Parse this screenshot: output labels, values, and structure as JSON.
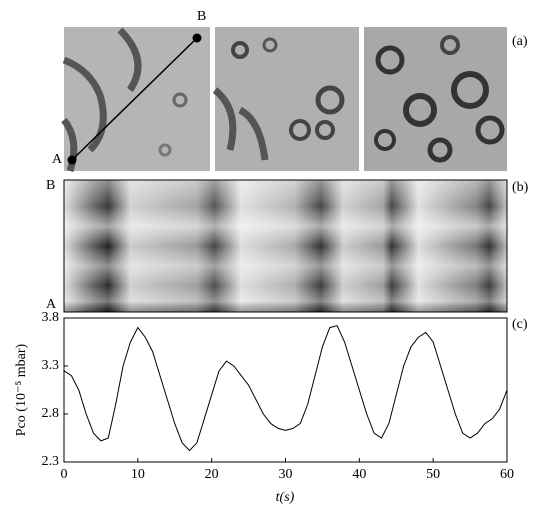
{
  "panel_a": {
    "label": "(a)",
    "point_a": "A",
    "point_b": "B"
  },
  "panel_b": {
    "label": "(b)",
    "top": "B",
    "bottom": "A"
  },
  "chart_data": {
    "type": "line",
    "panel_label": "(c)",
    "x_label": "t(s)",
    "y_label": "Pco (10⁻⁵ mbar)",
    "x": [
      0,
      1,
      2,
      3,
      4,
      5,
      6,
      7,
      8,
      9,
      10,
      11,
      12,
      13,
      14,
      15,
      16,
      17,
      18,
      19,
      20,
      21,
      22,
      23,
      24,
      25,
      26,
      27,
      28,
      29,
      30,
      31,
      32,
      33,
      34,
      35,
      36,
      37,
      38,
      39,
      40,
      41,
      42,
      43,
      44,
      45,
      46,
      47,
      48,
      49,
      50,
      51,
      52,
      53,
      54,
      55,
      56,
      57,
      58,
      59,
      60
    ],
    "series": [
      {
        "color": "#000000",
        "values": [
          3.25,
          3.2,
          3.05,
          2.8,
          2.6,
          2.52,
          2.55,
          2.9,
          3.3,
          3.55,
          3.7,
          3.6,
          3.45,
          3.2,
          2.95,
          2.7,
          2.5,
          2.42,
          2.5,
          2.75,
          3.0,
          3.25,
          3.35,
          3.3,
          3.2,
          3.1,
          2.95,
          2.8,
          2.7,
          2.65,
          2.63,
          2.65,
          2.7,
          2.9,
          3.2,
          3.5,
          3.7,
          3.72,
          3.55,
          3.3,
          3.05,
          2.8,
          2.6,
          2.55,
          2.7,
          3.0,
          3.3,
          3.5,
          3.6,
          3.65,
          3.55,
          3.3,
          3.05,
          2.8,
          2.6,
          2.55,
          2.6,
          2.7,
          2.75,
          2.85,
          3.05
        ]
      }
    ],
    "xlim": [
      0,
      60
    ],
    "ylim": [
      2.3,
      3.8
    ],
    "xticks": [
      0,
      10,
      20,
      30,
      40,
      50,
      60
    ],
    "yticks": [
      2.3,
      2.8,
      3.3,
      3.8
    ]
  }
}
